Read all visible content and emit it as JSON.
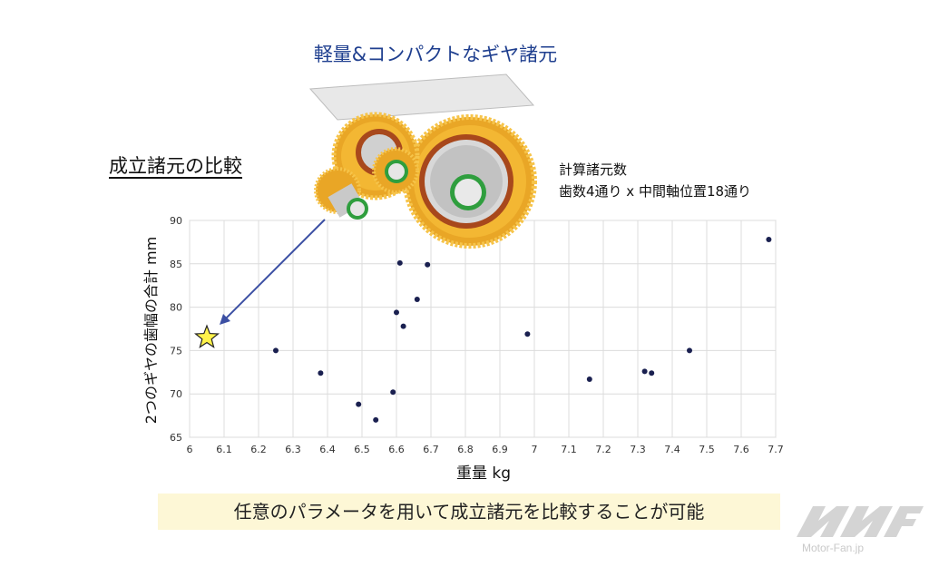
{
  "header": {
    "gear_title": "軽量&コンパクトなギヤ諸元",
    "section_title": "成立諸元の比較",
    "calc_line1": "計算諸元数",
    "calc_line2": "歯数4通り x 中間軸位置18通り"
  },
  "caption": "任意のパラメータを用いて成立諸元を比較することが可能",
  "watermark": {
    "text": "Motor-Fan.jp"
  },
  "colors": {
    "point": "#1a2050",
    "arrow": "#3b4fa3",
    "star_fill": "#fff34a",
    "gear": "#f2b230",
    "caption_bg": "#fdf7d6"
  },
  "chart_data": {
    "type": "scatter",
    "xlabel": "重量 kg",
    "ylabel": "2つのギヤの歯幅の合計 mm",
    "xlim": [
      6,
      7.7
    ],
    "ylim": [
      65,
      90
    ],
    "x_ticks": [
      "6",
      "6.1",
      "6.2",
      "6.3",
      "6.4",
      "6.5",
      "6.6",
      "6.7",
      "6.8",
      "6.9",
      "7",
      "7.1",
      "7.2",
      "7.3",
      "7.4",
      "7.5",
      "7.6",
      "7.7"
    ],
    "y_ticks": [
      "65",
      "70",
      "75",
      "80",
      "85",
      "90"
    ],
    "grid": true,
    "points": [
      {
        "x": 6.25,
        "y": 75.0
      },
      {
        "x": 6.38,
        "y": 72.4
      },
      {
        "x": 6.49,
        "y": 68.8
      },
      {
        "x": 6.54,
        "y": 67.0
      },
      {
        "x": 6.59,
        "y": 70.2
      },
      {
        "x": 6.6,
        "y": 79.4
      },
      {
        "x": 6.61,
        "y": 85.1
      },
      {
        "x": 6.62,
        "y": 77.8
      },
      {
        "x": 6.66,
        "y": 80.9
      },
      {
        "x": 6.69,
        "y": 84.9
      },
      {
        "x": 6.98,
        "y": 76.9
      },
      {
        "x": 7.16,
        "y": 71.7
      },
      {
        "x": 7.32,
        "y": 72.6
      },
      {
        "x": 7.34,
        "y": 72.4
      },
      {
        "x": 7.45,
        "y": 75.0
      },
      {
        "x": 7.68,
        "y": 87.8
      }
    ],
    "highlight": {
      "x": 6.05,
      "y": 76.5,
      "marker": "star"
    }
  }
}
